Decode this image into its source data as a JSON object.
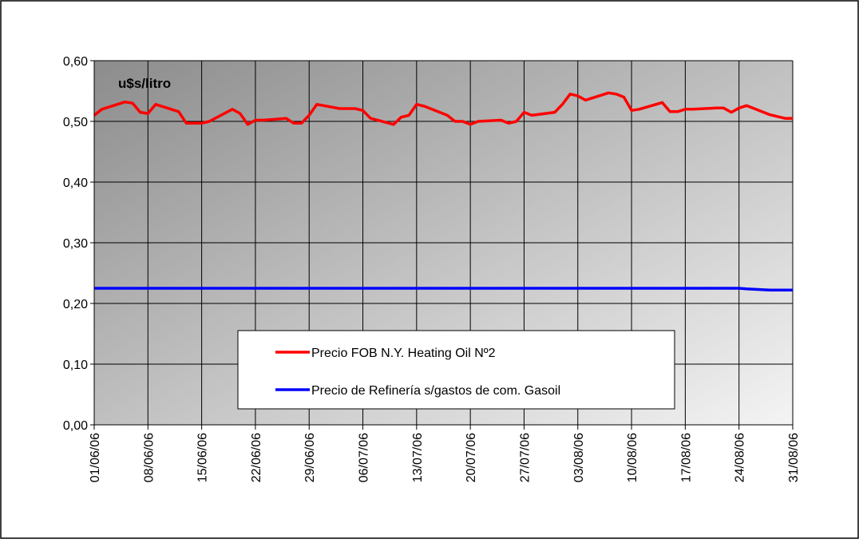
{
  "chart_data": {
    "type": "line",
    "title": "u$s/litro",
    "x": [
      "01/06/06",
      "02/06/06",
      "05/06/06",
      "06/06/06",
      "07/06/06",
      "08/06/06",
      "09/06/06",
      "12/06/06",
      "13/06/06",
      "14/06/06",
      "15/06/06",
      "16/06/06",
      "19/06/06",
      "20/06/06",
      "21/06/06",
      "22/06/06",
      "23/06/06",
      "26/06/06",
      "27/06/06",
      "28/06/06",
      "29/06/06",
      "30/06/06",
      "03/07/06",
      "04/07/06",
      "05/07/06",
      "06/07/06",
      "07/07/06",
      "10/07/06",
      "11/07/06",
      "12/07/06",
      "13/07/06",
      "14/07/06",
      "17/07/06",
      "18/07/06",
      "19/07/06",
      "20/07/06",
      "21/07/06",
      "24/07/06",
      "25/07/06",
      "26/07/06",
      "27/07/06",
      "28/07/06",
      "31/07/06",
      "01/08/06",
      "02/08/06",
      "03/08/06",
      "04/08/06",
      "07/08/06",
      "08/08/06",
      "09/08/06",
      "10/08/06",
      "11/08/06",
      "14/08/06",
      "15/08/06",
      "16/08/06",
      "17/08/06",
      "18/08/06",
      "21/08/06",
      "22/08/06",
      "23/08/06",
      "24/08/06",
      "25/08/06",
      "28/08/06",
      "29/08/06",
      "30/08/06",
      "31/08/06"
    ],
    "series": [
      {
        "name": "Precio FOB N.Y. Heating Oil Nº2",
        "color": "#ff0000",
        "values": [
          0.51,
          0.52,
          0.532,
          0.53,
          0.515,
          0.513,
          0.528,
          0.516,
          0.497,
          0.497,
          0.497,
          0.5,
          0.52,
          0.513,
          0.495,
          0.502,
          0.502,
          0.505,
          0.497,
          0.497,
          0.51,
          0.528,
          0.521,
          0.521,
          0.521,
          0.518,
          0.505,
          0.495,
          0.507,
          0.51,
          0.528,
          0.525,
          0.51,
          0.5,
          0.5,
          0.495,
          0.5,
          0.502,
          0.497,
          0.5,
          0.515,
          0.51,
          0.515,
          0.528,
          0.545,
          0.542,
          0.535,
          0.547,
          0.545,
          0.54,
          0.518,
          0.52,
          0.531,
          0.516,
          0.516,
          0.52,
          0.52,
          0.522,
          0.522,
          0.515,
          0.522,
          0.526,
          0.511,
          0.508,
          0.505,
          0.505
        ]
      },
      {
        "name": "Precio de Refinería s/gastos de com. Gasoil",
        "color": "#0000ff",
        "values": [
          0.225,
          0.225,
          0.225,
          0.225,
          0.225,
          0.225,
          0.225,
          0.225,
          0.225,
          0.225,
          0.225,
          0.225,
          0.225,
          0.225,
          0.225,
          0.225,
          0.225,
          0.225,
          0.225,
          0.225,
          0.225,
          0.225,
          0.225,
          0.225,
          0.225,
          0.225,
          0.225,
          0.225,
          0.225,
          0.225,
          0.225,
          0.225,
          0.225,
          0.225,
          0.225,
          0.225,
          0.225,
          0.225,
          0.225,
          0.225,
          0.225,
          0.225,
          0.225,
          0.225,
          0.225,
          0.225,
          0.225,
          0.225,
          0.225,
          0.225,
          0.225,
          0.225,
          0.225,
          0.225,
          0.225,
          0.225,
          0.225,
          0.225,
          0.225,
          0.225,
          0.225,
          0.224,
          0.222,
          0.222,
          0.222,
          0.222
        ]
      }
    ],
    "xlim": [
      "01/06/06",
      "31/08/06"
    ],
    "xticks": [
      "01/06/06",
      "08/06/06",
      "15/06/06",
      "22/06/06",
      "29/06/06",
      "06/07/06",
      "13/07/06",
      "20/07/06",
      "27/07/06",
      "03/08/06",
      "10/08/06",
      "17/08/06",
      "24/08/06",
      "31/08/06"
    ],
    "ylim": [
      0,
      0.6
    ],
    "yticks": [
      {
        "value": 0,
        "label": "0,00"
      },
      {
        "value": 0.1,
        "label": "0,10"
      },
      {
        "value": 0.2,
        "label": "0,20"
      },
      {
        "value": 0.3,
        "label": "0,30"
      },
      {
        "value": 0.4,
        "label": "0,40"
      },
      {
        "value": 0.5,
        "label": "0,50"
      },
      {
        "value": 0.6,
        "label": "0,60"
      }
    ],
    "grid": true
  }
}
